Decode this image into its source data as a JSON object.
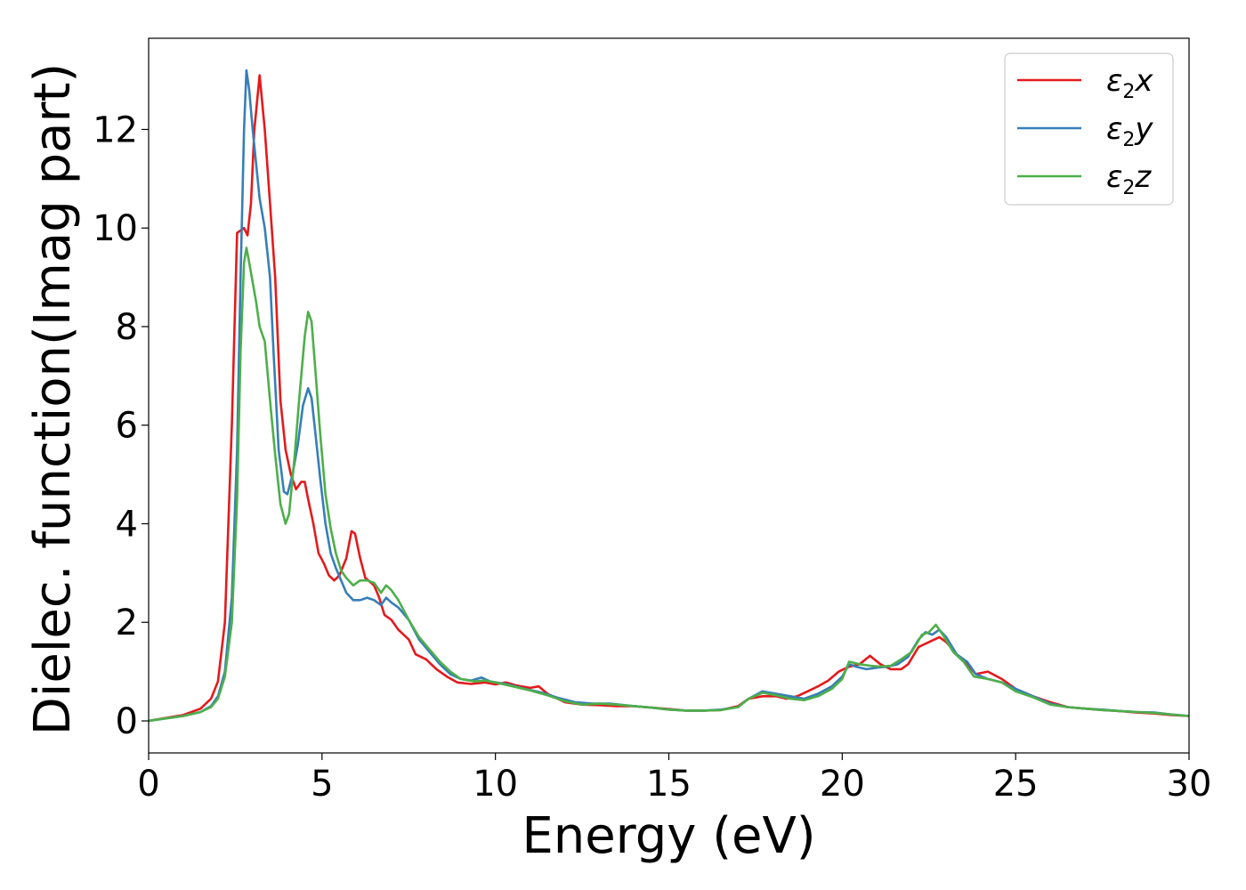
{
  "chart_data": {
    "type": "line",
    "title": "",
    "xlabel": "Energy (eV)",
    "ylabel": "Dielec. function(Imag part)",
    "xlim": [
      0,
      30
    ],
    "ylim": [
      -0.65,
      13.85
    ],
    "xticks": [
      {
        "value": 0,
        "label": "0"
      },
      {
        "value": 5,
        "label": "5"
      },
      {
        "value": 10,
        "label": "10"
      },
      {
        "value": 15,
        "label": "15"
      },
      {
        "value": 20,
        "label": "20"
      },
      {
        "value": 25,
        "label": "25"
      },
      {
        "value": 30,
        "label": "30"
      }
    ],
    "yticks": [
      {
        "value": 0,
        "label": "0"
      },
      {
        "value": 2,
        "label": "2"
      },
      {
        "value": 4,
        "label": "4"
      },
      {
        "value": 6,
        "label": "6"
      },
      {
        "value": 8,
        "label": "8"
      },
      {
        "value": 10,
        "label": "10"
      },
      {
        "value": 12,
        "label": "12"
      }
    ],
    "grid": false,
    "legend_position": "top-right",
    "series": [
      {
        "name": "ε2x",
        "legend": {
          "symbol": "ε",
          "sub": "2",
          "suffix": "x"
        },
        "color": "#e41a1c",
        "points": [
          [
            0,
            0
          ],
          [
            0.5,
            0.06
          ],
          [
            1.0,
            0.12
          ],
          [
            1.5,
            0.25
          ],
          [
            1.8,
            0.45
          ],
          [
            2.0,
            0.8
          ],
          [
            2.2,
            2.0
          ],
          [
            2.4,
            6.0
          ],
          [
            2.55,
            9.9
          ],
          [
            2.65,
            9.95
          ],
          [
            2.75,
            10.0
          ],
          [
            2.85,
            9.85
          ],
          [
            2.95,
            10.5
          ],
          [
            3.05,
            12.0
          ],
          [
            3.2,
            13.1
          ],
          [
            3.35,
            12.0
          ],
          [
            3.5,
            10.5
          ],
          [
            3.65,
            9.0
          ],
          [
            3.8,
            6.5
          ],
          [
            3.95,
            5.5
          ],
          [
            4.1,
            5.0
          ],
          [
            4.25,
            4.7
          ],
          [
            4.4,
            4.85
          ],
          [
            4.5,
            4.85
          ],
          [
            4.6,
            4.5
          ],
          [
            4.75,
            4.0
          ],
          [
            4.9,
            3.4
          ],
          [
            5.05,
            3.2
          ],
          [
            5.2,
            2.95
          ],
          [
            5.35,
            2.85
          ],
          [
            5.5,
            2.95
          ],
          [
            5.7,
            3.3
          ],
          [
            5.85,
            3.85
          ],
          [
            5.95,
            3.8
          ],
          [
            6.1,
            3.3
          ],
          [
            6.25,
            2.9
          ],
          [
            6.5,
            2.75
          ],
          [
            6.65,
            2.5
          ],
          [
            6.8,
            2.15
          ],
          [
            7.0,
            2.05
          ],
          [
            7.2,
            1.85
          ],
          [
            7.5,
            1.65
          ],
          [
            7.7,
            1.35
          ],
          [
            8.0,
            1.25
          ],
          [
            8.3,
            1.05
          ],
          [
            8.6,
            0.9
          ],
          [
            8.9,
            0.78
          ],
          [
            9.3,
            0.75
          ],
          [
            9.7,
            0.78
          ],
          [
            10.0,
            0.74
          ],
          [
            10.3,
            0.78
          ],
          [
            10.6,
            0.72
          ],
          [
            11.0,
            0.67
          ],
          [
            11.25,
            0.7
          ],
          [
            11.5,
            0.55
          ],
          [
            12.0,
            0.38
          ],
          [
            12.5,
            0.33
          ],
          [
            13.0,
            0.32
          ],
          [
            13.5,
            0.3
          ],
          [
            14.0,
            0.3
          ],
          [
            14.5,
            0.27
          ],
          [
            15.0,
            0.24
          ],
          [
            15.5,
            0.21
          ],
          [
            16.0,
            0.21
          ],
          [
            16.5,
            0.22
          ],
          [
            17.0,
            0.3
          ],
          [
            17.3,
            0.45
          ],
          [
            17.7,
            0.5
          ],
          [
            18.1,
            0.5
          ],
          [
            18.4,
            0.45
          ],
          [
            18.7,
            0.5
          ],
          [
            19.0,
            0.6
          ],
          [
            19.3,
            0.7
          ],
          [
            19.6,
            0.82
          ],
          [
            19.9,
            1.0
          ],
          [
            20.2,
            1.1
          ],
          [
            20.5,
            1.15
          ],
          [
            20.8,
            1.32
          ],
          [
            21.1,
            1.15
          ],
          [
            21.4,
            1.05
          ],
          [
            21.7,
            1.05
          ],
          [
            21.9,
            1.15
          ],
          [
            22.2,
            1.5
          ],
          [
            22.5,
            1.6
          ],
          [
            22.8,
            1.7
          ],
          [
            23.0,
            1.6
          ],
          [
            23.3,
            1.35
          ],
          [
            23.6,
            1.15
          ],
          [
            23.85,
            0.95
          ],
          [
            24.2,
            1.0
          ],
          [
            24.6,
            0.85
          ],
          [
            25.0,
            0.65
          ],
          [
            25.5,
            0.5
          ],
          [
            26.0,
            0.38
          ],
          [
            26.5,
            0.28
          ],
          [
            27.0,
            0.25
          ],
          [
            27.5,
            0.22
          ],
          [
            28.0,
            0.2
          ],
          [
            28.5,
            0.17
          ],
          [
            29.0,
            0.15
          ],
          [
            29.5,
            0.12
          ],
          [
            30.0,
            0.1
          ]
        ]
      },
      {
        "name": "ε2y",
        "legend": {
          "symbol": "ε",
          "sub": "2",
          "suffix": "y"
        },
        "color": "#377eb8",
        "points": [
          [
            0,
            0
          ],
          [
            0.5,
            0.05
          ],
          [
            1.0,
            0.1
          ],
          [
            1.5,
            0.18
          ],
          [
            1.8,
            0.3
          ],
          [
            2.0,
            0.5
          ],
          [
            2.2,
            1.0
          ],
          [
            2.4,
            2.5
          ],
          [
            2.55,
            5.5
          ],
          [
            2.65,
            9.0
          ],
          [
            2.75,
            12.0
          ],
          [
            2.82,
            13.2
          ],
          [
            2.9,
            12.8
          ],
          [
            3.0,
            12.0
          ],
          [
            3.1,
            11.3
          ],
          [
            3.2,
            10.6
          ],
          [
            3.35,
            10.0
          ],
          [
            3.5,
            9.0
          ],
          [
            3.6,
            7.5
          ],
          [
            3.75,
            5.5
          ],
          [
            3.9,
            4.65
          ],
          [
            4.0,
            4.6
          ],
          [
            4.15,
            5.0
          ],
          [
            4.3,
            5.6
          ],
          [
            4.45,
            6.4
          ],
          [
            4.6,
            6.75
          ],
          [
            4.7,
            6.55
          ],
          [
            4.8,
            5.9
          ],
          [
            4.95,
            4.9
          ],
          [
            5.1,
            4.0
          ],
          [
            5.25,
            3.4
          ],
          [
            5.4,
            3.1
          ],
          [
            5.55,
            2.85
          ],
          [
            5.7,
            2.6
          ],
          [
            5.9,
            2.45
          ],
          [
            6.1,
            2.45
          ],
          [
            6.3,
            2.5
          ],
          [
            6.5,
            2.45
          ],
          [
            6.7,
            2.35
          ],
          [
            6.85,
            2.5
          ],
          [
            7.0,
            2.4
          ],
          [
            7.2,
            2.3
          ],
          [
            7.5,
            2.05
          ],
          [
            7.8,
            1.65
          ],
          [
            8.1,
            1.4
          ],
          [
            8.4,
            1.15
          ],
          [
            8.7,
            0.95
          ],
          [
            9.0,
            0.85
          ],
          [
            9.3,
            0.82
          ],
          [
            9.6,
            0.88
          ],
          [
            9.85,
            0.8
          ],
          [
            10.3,
            0.75
          ],
          [
            10.8,
            0.66
          ],
          [
            11.3,
            0.58
          ],
          [
            11.8,
            0.47
          ],
          [
            12.3,
            0.38
          ],
          [
            12.8,
            0.35
          ],
          [
            13.3,
            0.35
          ],
          [
            14.0,
            0.3
          ],
          [
            14.5,
            0.27
          ],
          [
            15.0,
            0.23
          ],
          [
            15.5,
            0.21
          ],
          [
            16.0,
            0.21
          ],
          [
            16.5,
            0.23
          ],
          [
            17.0,
            0.28
          ],
          [
            17.3,
            0.45
          ],
          [
            17.7,
            0.6
          ],
          [
            18.1,
            0.55
          ],
          [
            18.5,
            0.5
          ],
          [
            18.9,
            0.45
          ],
          [
            19.3,
            0.55
          ],
          [
            19.7,
            0.7
          ],
          [
            20.0,
            0.9
          ],
          [
            20.2,
            1.15
          ],
          [
            20.4,
            1.1
          ],
          [
            20.7,
            1.05
          ],
          [
            21.0,
            1.08
          ],
          [
            21.3,
            1.1
          ],
          [
            21.6,
            1.15
          ],
          [
            21.9,
            1.3
          ],
          [
            22.2,
            1.65
          ],
          [
            22.4,
            1.8
          ],
          [
            22.6,
            1.75
          ],
          [
            22.8,
            1.85
          ],
          [
            23.0,
            1.7
          ],
          [
            23.3,
            1.35
          ],
          [
            23.6,
            1.2
          ],
          [
            23.85,
            0.95
          ],
          [
            24.2,
            0.85
          ],
          [
            24.6,
            0.78
          ],
          [
            25.0,
            0.65
          ],
          [
            25.5,
            0.5
          ],
          [
            26.0,
            0.35
          ],
          [
            26.5,
            0.28
          ],
          [
            27.0,
            0.25
          ],
          [
            27.5,
            0.23
          ],
          [
            28.0,
            0.2
          ],
          [
            28.5,
            0.18
          ],
          [
            29.0,
            0.17
          ],
          [
            29.5,
            0.13
          ],
          [
            30.0,
            0.1
          ]
        ]
      },
      {
        "name": "ε2z",
        "legend": {
          "symbol": "ε",
          "sub": "2",
          "suffix": "z"
        },
        "color": "#4daf4a",
        "points": [
          [
            0,
            0
          ],
          [
            0.5,
            0.05
          ],
          [
            1.0,
            0.1
          ],
          [
            1.5,
            0.18
          ],
          [
            1.8,
            0.28
          ],
          [
            2.0,
            0.45
          ],
          [
            2.2,
            0.9
          ],
          [
            2.4,
            2.0
          ],
          [
            2.55,
            4.5
          ],
          [
            2.65,
            7.5
          ],
          [
            2.75,
            9.3
          ],
          [
            2.82,
            9.6
          ],
          [
            2.9,
            9.3
          ],
          [
            3.0,
            8.9
          ],
          [
            3.1,
            8.5
          ],
          [
            3.2,
            8.0
          ],
          [
            3.35,
            7.7
          ],
          [
            3.5,
            6.5
          ],
          [
            3.65,
            5.4
          ],
          [
            3.8,
            4.4
          ],
          [
            3.95,
            4.0
          ],
          [
            4.05,
            4.2
          ],
          [
            4.2,
            5.3
          ],
          [
            4.35,
            6.6
          ],
          [
            4.5,
            7.8
          ],
          [
            4.6,
            8.3
          ],
          [
            4.7,
            8.1
          ],
          [
            4.8,
            7.2
          ],
          [
            4.95,
            5.8
          ],
          [
            5.1,
            4.6
          ],
          [
            5.25,
            3.9
          ],
          [
            5.4,
            3.4
          ],
          [
            5.55,
            3.05
          ],
          [
            5.7,
            2.9
          ],
          [
            5.9,
            2.75
          ],
          [
            6.1,
            2.85
          ],
          [
            6.3,
            2.85
          ],
          [
            6.5,
            2.8
          ],
          [
            6.7,
            2.6
          ],
          [
            6.85,
            2.75
          ],
          [
            7.0,
            2.65
          ],
          [
            7.2,
            2.45
          ],
          [
            7.5,
            2.05
          ],
          [
            7.8,
            1.7
          ],
          [
            8.1,
            1.45
          ],
          [
            8.4,
            1.2
          ],
          [
            8.7,
            1.0
          ],
          [
            9.0,
            0.85
          ],
          [
            9.4,
            0.8
          ],
          [
            9.7,
            0.82
          ],
          [
            10.0,
            0.78
          ],
          [
            10.5,
            0.7
          ],
          [
            11.0,
            0.62
          ],
          [
            11.5,
            0.52
          ],
          [
            12.0,
            0.4
          ],
          [
            12.5,
            0.33
          ],
          [
            13.0,
            0.35
          ],
          [
            13.5,
            0.33
          ],
          [
            14.0,
            0.3
          ],
          [
            14.5,
            0.27
          ],
          [
            15.0,
            0.23
          ],
          [
            15.5,
            0.21
          ],
          [
            16.0,
            0.21
          ],
          [
            16.5,
            0.22
          ],
          [
            17.0,
            0.28
          ],
          [
            17.3,
            0.45
          ],
          [
            17.7,
            0.57
          ],
          [
            18.1,
            0.52
          ],
          [
            18.5,
            0.45
          ],
          [
            18.9,
            0.42
          ],
          [
            19.3,
            0.5
          ],
          [
            19.7,
            0.65
          ],
          [
            20.0,
            0.85
          ],
          [
            20.2,
            1.2
          ],
          [
            20.5,
            1.15
          ],
          [
            20.8,
            1.12
          ],
          [
            21.1,
            1.1
          ],
          [
            21.4,
            1.12
          ],
          [
            21.7,
            1.25
          ],
          [
            22.0,
            1.4
          ],
          [
            22.3,
            1.75
          ],
          [
            22.5,
            1.8
          ],
          [
            22.7,
            1.95
          ],
          [
            22.9,
            1.75
          ],
          [
            23.2,
            1.4
          ],
          [
            23.5,
            1.2
          ],
          [
            23.8,
            0.9
          ],
          [
            24.2,
            0.85
          ],
          [
            24.6,
            0.78
          ],
          [
            25.0,
            0.6
          ],
          [
            25.5,
            0.48
          ],
          [
            26.0,
            0.33
          ],
          [
            26.5,
            0.28
          ],
          [
            27.0,
            0.25
          ],
          [
            27.5,
            0.22
          ],
          [
            28.0,
            0.2
          ],
          [
            28.5,
            0.18
          ],
          [
            29.0,
            0.16
          ],
          [
            29.5,
            0.13
          ],
          [
            30.0,
            0.1
          ]
        ]
      }
    ]
  }
}
